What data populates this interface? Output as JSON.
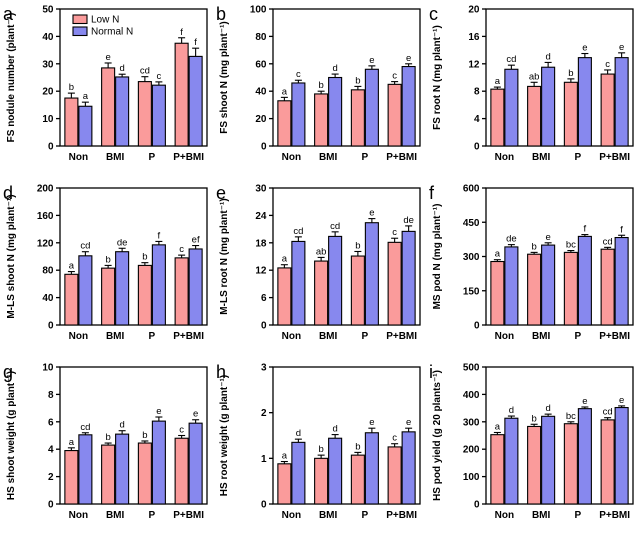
{
  "figure": {
    "background": "#ffffff",
    "colors": {
      "low_n": "#FA9B9B",
      "normal_n": "#8788EE",
      "bar_stroke": "#000000",
      "axis": "#000000"
    },
    "legend": {
      "items": [
        {
          "label": "Low N",
          "color_key": "low_n"
        },
        {
          "label": "Normal N",
          "color_key": "normal_n"
        }
      ]
    }
  },
  "chart_data": [
    {
      "panel": "a",
      "type": "bar",
      "ylabel": "FS nodule number (plant⁻¹)",
      "ylim": [
        0,
        50
      ],
      "yticks": [
        0,
        10,
        20,
        30,
        40,
        50
      ],
      "categories": [
        "Non",
        "BMI",
        "P",
        "P+BMI"
      ],
      "legend": true,
      "series": [
        {
          "name": "Low N",
          "values": [
            17.5,
            28.5,
            23.5,
            37.5
          ],
          "errors": [
            1.8,
            1.8,
            1.8,
            2.0
          ],
          "letters": [
            "b",
            "e",
            "cd",
            "f"
          ]
        },
        {
          "name": "Normal N",
          "values": [
            14.5,
            25.2,
            22.2,
            32.7
          ],
          "errors": [
            1.5,
            1.0,
            1.2,
            3.0
          ],
          "letters": [
            "a",
            "d",
            "c",
            "f"
          ]
        }
      ]
    },
    {
      "panel": "b",
      "type": "bar",
      "ylabel": "FS shoot N (mg plant⁻¹)",
      "ylim": [
        0,
        100
      ],
      "yticks": [
        0,
        20,
        40,
        60,
        80,
        100
      ],
      "categories": [
        "Non",
        "BMI",
        "P",
        "P+BMI"
      ],
      "legend": false,
      "series": [
        {
          "name": "Low N",
          "values": [
            33,
            38,
            41,
            45
          ],
          "errors": [
            2.5,
            2.0,
            2.5,
            2.0
          ],
          "letters": [
            "a",
            "b",
            "b",
            "c"
          ]
        },
        {
          "name": "Normal N",
          "values": [
            46,
            50,
            56,
            58
          ],
          "errors": [
            2.0,
            2.5,
            2.5,
            2.0
          ],
          "letters": [
            "c",
            "d",
            "e",
            "e"
          ]
        }
      ]
    },
    {
      "panel": "c",
      "type": "bar",
      "ylabel": "FS root N (mg plant⁻¹)",
      "ylim": [
        0,
        20
      ],
      "yticks": [
        0,
        4,
        8,
        12,
        16,
        20
      ],
      "categories": [
        "Non",
        "BMI",
        "P",
        "P+BMI"
      ],
      "legend": false,
      "series": [
        {
          "name": "Low N",
          "values": [
            8.3,
            8.7,
            9.3,
            10.5
          ],
          "errors": [
            0.3,
            0.6,
            0.5,
            0.6
          ],
          "letters": [
            "a",
            "ab",
            "b",
            "c"
          ]
        },
        {
          "name": "Normal N",
          "values": [
            11.2,
            11.5,
            12.9,
            12.9
          ],
          "errors": [
            0.6,
            0.7,
            0.6,
            0.7
          ],
          "letters": [
            "cd",
            "d",
            "e",
            "e"
          ]
        }
      ]
    },
    {
      "panel": "d",
      "type": "bar",
      "ylabel": "M-LS shoot N (mg plant⁻¹)",
      "ylim": [
        0,
        200
      ],
      "yticks": [
        0,
        40,
        80,
        120,
        160,
        200
      ],
      "categories": [
        "Non",
        "BMI",
        "P",
        "P+BMI"
      ],
      "legend": false,
      "series": [
        {
          "name": "Low N",
          "values": [
            74,
            83,
            87,
            98
          ],
          "errors": [
            4,
            4,
            4,
            4
          ],
          "letters": [
            "a",
            "b",
            "b",
            "c"
          ]
        },
        {
          "name": "Normal N",
          "values": [
            101,
            107,
            117,
            111
          ],
          "errors": [
            6,
            5,
            5,
            5
          ],
          "letters": [
            "cd",
            "de",
            "f",
            "ef"
          ]
        }
      ]
    },
    {
      "panel": "e",
      "type": "bar",
      "ylabel": "M-LS root N (mg plant⁻¹)",
      "ylim": [
        0,
        30
      ],
      "yticks": [
        0,
        6,
        12,
        18,
        24,
        30
      ],
      "categories": [
        "Non",
        "BMI",
        "P",
        "P+BMI"
      ],
      "legend": false,
      "series": [
        {
          "name": "Low N",
          "values": [
            12.5,
            14.0,
            15.1,
            18.1
          ],
          "errors": [
            0.7,
            0.8,
            1.0,
            0.9
          ],
          "letters": [
            "a",
            "ab",
            "b",
            "c"
          ]
        },
        {
          "name": "Normal N",
          "values": [
            18.3,
            19.4,
            22.4,
            20.5
          ],
          "errors": [
            1.0,
            1.0,
            0.9,
            1.2
          ],
          "letters": [
            "cd",
            "cd",
            "e",
            "de"
          ]
        }
      ]
    },
    {
      "panel": "f",
      "type": "bar",
      "ylabel": "MS pod N (mg plant⁻¹)",
      "ylim": [
        0,
        600
      ],
      "yticks": [
        0,
        150,
        300,
        450,
        600
      ],
      "categories": [
        "Non",
        "BMI",
        "P",
        "P+BMI"
      ],
      "legend": false,
      "series": [
        {
          "name": "Low N",
          "values": [
            278,
            310,
            318,
            332
          ],
          "errors": [
            8,
            8,
            8,
            8
          ],
          "letters": [
            "a",
            "b",
            "bc",
            "cd"
          ]
        },
        {
          "name": "Normal N",
          "values": [
            342,
            350,
            388,
            383
          ],
          "errors": [
            10,
            10,
            8,
            10
          ],
          "letters": [
            "de",
            "e",
            "f",
            "f"
          ]
        }
      ]
    },
    {
      "panel": "g",
      "type": "bar",
      "ylabel": "HS shoot weight (g plant⁻¹)",
      "ylim": [
        0,
        10
      ],
      "yticks": [
        0,
        2,
        4,
        6,
        8,
        10
      ],
      "categories": [
        "Non",
        "BMI",
        "P",
        "P+BMI"
      ],
      "legend": false,
      "series": [
        {
          "name": "Low N",
          "values": [
            3.9,
            4.3,
            4.45,
            4.8
          ],
          "errors": [
            0.2,
            0.15,
            0.15,
            0.2
          ],
          "letters": [
            "a",
            "b",
            "b",
            "c"
          ]
        },
        {
          "name": "Normal N",
          "values": [
            5.05,
            5.1,
            6.05,
            5.9
          ],
          "errors": [
            0.15,
            0.25,
            0.3,
            0.25
          ],
          "letters": [
            "cd",
            "d",
            "e",
            "e"
          ]
        }
      ]
    },
    {
      "panel": "h",
      "type": "bar",
      "ylabel": "HS root weight (g plant⁻¹)",
      "ylim": [
        0,
        3
      ],
      "yticks": [
        0,
        1,
        2,
        3
      ],
      "categories": [
        "Non",
        "BMI",
        "P",
        "P+BMI"
      ],
      "legend": false,
      "series": [
        {
          "name": "Low N",
          "values": [
            0.88,
            1.0,
            1.07,
            1.25
          ],
          "errors": [
            0.05,
            0.07,
            0.06,
            0.07
          ],
          "letters": [
            "a",
            "b",
            "b",
            "c"
          ]
        },
        {
          "name": "Normal N",
          "values": [
            1.35,
            1.44,
            1.56,
            1.58
          ],
          "errors": [
            0.07,
            0.08,
            0.1,
            0.08
          ],
          "letters": [
            "d",
            "d",
            "e",
            "e"
          ]
        }
      ]
    },
    {
      "panel": "i",
      "type": "bar",
      "ylabel": "HS pod yield (g 20 plants⁻¹)",
      "ylim": [
        0,
        500
      ],
      "yticks": [
        0,
        100,
        200,
        300,
        400,
        500
      ],
      "categories": [
        "Non",
        "BMI",
        "P",
        "P+BMI"
      ],
      "legend": false,
      "series": [
        {
          "name": "Low N",
          "values": [
            253,
            283,
            293,
            307
          ],
          "errors": [
            8,
            8,
            7,
            8
          ],
          "letters": [
            "a",
            "b",
            "bc",
            "cd"
          ]
        },
        {
          "name": "Normal N",
          "values": [
            313,
            320,
            348,
            352
          ],
          "errors": [
            8,
            8,
            6,
            6
          ],
          "letters": [
            "d",
            "d",
            "e",
            "e"
          ]
        }
      ]
    }
  ]
}
